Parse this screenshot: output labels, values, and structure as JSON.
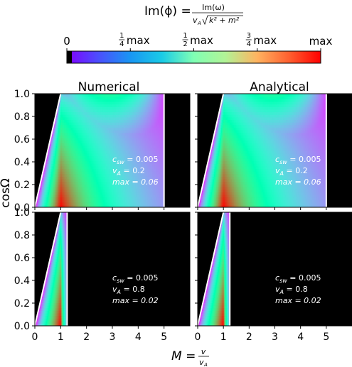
{
  "figure": {
    "colorbar": {
      "title_main": "Im(ϕ) =",
      "title_numerator": "Im(ω)",
      "title_denom_prefix": "v",
      "title_denom_sub": "A",
      "title_denom_rest": "k² + m²",
      "colormap": "rainbow",
      "ticks": [
        {
          "value": 0,
          "num": "",
          "den": "",
          "text": "0"
        },
        {
          "value": 0.25,
          "num": "1",
          "den": "4",
          "text": "max"
        },
        {
          "value": 0.5,
          "num": "1",
          "den": "2",
          "text": "max"
        },
        {
          "value": 0.75,
          "num": "3",
          "den": "4",
          "text": "max"
        },
        {
          "value": 1,
          "num": "",
          "den": "",
          "text": "max"
        }
      ]
    },
    "column_titles": [
      "Numerical",
      "Analytical"
    ],
    "ylabel": "cosΩ",
    "xlabel_main": "M =",
    "xlabel_num": "v",
    "xlabel_den": "v",
    "xlabel_den_sub": "A",
    "xticks": [
      "0",
      "1",
      "2",
      "3",
      "4",
      "5"
    ],
    "yticks": [
      "0.0",
      "0.2",
      "0.4",
      "0.6",
      "0.8",
      "1.0"
    ],
    "annotations": [
      {
        "c_sw": "c",
        "c_sub": "sw",
        "c_val": "= 0.005",
        "v": "v",
        "v_sub": "A",
        "v_val": "= 0.2",
        "max": "max = 0.06"
      },
      {
        "c_sw": "c",
        "c_sub": "sw",
        "c_val": "= 0.005",
        "v": "v",
        "v_sub": "A",
        "v_val": "= 0.8",
        "max": "max = 0.02"
      }
    ]
  },
  "chart_data": [
    {
      "type": "heatmap",
      "title": "Numerical",
      "xlabel": "",
      "ylabel": "cosΩ",
      "xlim": [
        0,
        6
      ],
      "ylim": [
        0,
        1
      ],
      "v_A": 0.2,
      "c_sw": 0.005,
      "max": 0.06,
      "cutoff_M": 5.0,
      "colormap": "rainbow",
      "background": "#000000",
      "cutoff_line_color": "#ffffff"
    },
    {
      "type": "heatmap",
      "title": "Analytical",
      "xlabel": "",
      "ylabel": "",
      "xlim": [
        0,
        6
      ],
      "ylim": [
        0,
        1
      ],
      "v_A": 0.2,
      "c_sw": 0.005,
      "max": 0.06,
      "cutoff_M": 5.0,
      "colormap": "rainbow",
      "background": "#000000",
      "cutoff_line_color": "#ffffff"
    },
    {
      "type": "heatmap",
      "title": "",
      "xlabel": "M = v/v_A",
      "ylabel": "cosΩ",
      "xlim": [
        0,
        6
      ],
      "ylim": [
        0,
        1
      ],
      "v_A": 0.8,
      "c_sw": 0.005,
      "max": 0.02,
      "cutoff_M": 1.25,
      "colormap": "rainbow",
      "background": "#000000",
      "cutoff_line_color": "#ffffff"
    },
    {
      "type": "heatmap",
      "title": "",
      "xlabel": "M = v/v_A",
      "ylabel": "",
      "xlim": [
        0,
        6
      ],
      "ylim": [
        0,
        1
      ],
      "v_A": 0.8,
      "c_sw": 0.005,
      "max": 0.02,
      "cutoff_M": 1.25,
      "colormap": "rainbow",
      "background": "#000000",
      "cutoff_line_color": "#ffffff"
    }
  ]
}
